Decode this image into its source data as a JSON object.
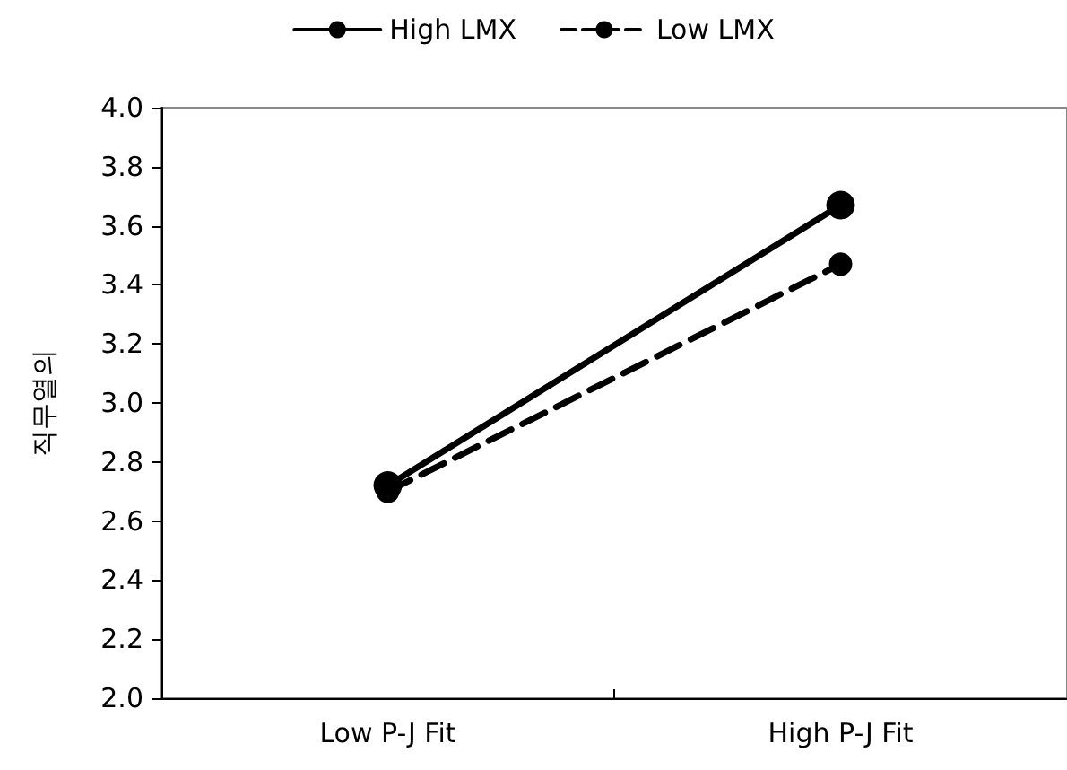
{
  "chart_data": {
    "type": "line",
    "ylabel": "직무열의",
    "categories": [
      "Low P-J Fit",
      "High P-J Fit"
    ],
    "series": [
      {
        "name": "High LMX",
        "color": "#000000",
        "values": [
          2.72,
          3.67
        ],
        "line_style": "solid"
      },
      {
        "name": "Low LMX",
        "color": "#000000",
        "values": [
          2.7,
          3.47
        ],
        "line_style": "dashed"
      }
    ],
    "ylim": [
      2.0,
      4.0
    ],
    "yticks": [
      {
        "value": 2.0,
        "label": "2.0"
      },
      {
        "value": 2.2,
        "label": "2.2"
      },
      {
        "value": 2.4,
        "label": "2.4"
      },
      {
        "value": 2.6,
        "label": "2.6"
      },
      {
        "value": 2.8,
        "label": "2.8"
      },
      {
        "value": 3.0,
        "label": "3.0"
      },
      {
        "value": 3.2,
        "label": "3.2"
      },
      {
        "value": 3.4,
        "label": "3.4"
      },
      {
        "value": 3.6,
        "label": "3.6"
      },
      {
        "value": 3.8,
        "label": "3.8"
      },
      {
        "value": 4.0,
        "label": "4.0"
      }
    ],
    "grid": false,
    "legend": "top",
    "marker": "circle"
  }
}
